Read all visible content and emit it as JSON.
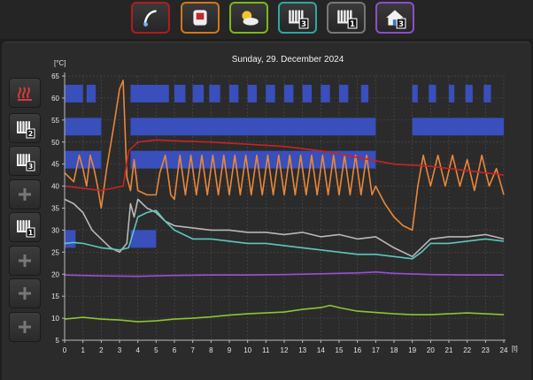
{
  "toolbar": {
    "buttons": [
      {
        "name": "mode-button",
        "icon": "gauge-icon",
        "color": "#b01c1c"
      },
      {
        "name": "boiler-button",
        "icon": "boiler-icon",
        "color": "#d4761a"
      },
      {
        "name": "weather-button",
        "icon": "sun-cloud-icon",
        "color": "#7fb51c"
      },
      {
        "name": "heating-circuit-3-button",
        "icon": "radiator-3-icon",
        "badge": "3",
        "color": "#2fa7a0"
      },
      {
        "name": "heating-circuit-1-button",
        "icon": "radiator-1-icon",
        "badge": "1",
        "color": "#777777"
      },
      {
        "name": "home-3-button",
        "icon": "house-icon",
        "badge": "3",
        "color": "#8a4fc9"
      }
    ]
  },
  "sidebar": {
    "items": [
      {
        "name": "heat-output-button",
        "icon": "heat-waves-icon",
        "badge": ""
      },
      {
        "name": "circuit-2-button",
        "icon": "radiator-icon",
        "badge": "2"
      },
      {
        "name": "circuit-3-button",
        "icon": "radiator-icon",
        "badge": "3"
      },
      {
        "name": "add-button-1",
        "icon": "plus-icon",
        "badge": ""
      },
      {
        "name": "circuit-1-button",
        "icon": "radiator-icon",
        "badge": "1"
      },
      {
        "name": "add-button-2",
        "icon": "plus-icon",
        "badge": ""
      },
      {
        "name": "add-button-3",
        "icon": "plus-icon",
        "badge": ""
      },
      {
        "name": "add-button-4",
        "icon": "plus-icon",
        "badge": ""
      }
    ]
  },
  "chart_data": {
    "type": "line",
    "title": "Sunday, 29. December 2024",
    "ylabel": "[°C]",
    "xlabel": "[t]",
    "ylim": [
      5,
      65
    ],
    "xlim": [
      0,
      24
    ],
    "yticks": [
      5,
      10,
      15,
      20,
      25,
      30,
      35,
      40,
      45,
      50,
      55,
      60,
      65
    ],
    "xticks": [
      0,
      1,
      2,
      3,
      4,
      5,
      6,
      7,
      8,
      9,
      10,
      11,
      12,
      13,
      14,
      15,
      16,
      17,
      18,
      19,
      20,
      21,
      22,
      23,
      24
    ],
    "grid": true,
    "bands": [
      {
        "color": "#3a53c9",
        "y": [
          59,
          63
        ],
        "intervals": [
          [
            0,
            1
          ],
          [
            1.2,
            1.7
          ],
          [
            3.6,
            5.7
          ],
          [
            6,
            6.6
          ],
          [
            7,
            7.6
          ],
          [
            7.9,
            8.5
          ],
          [
            9,
            9.5
          ],
          [
            10,
            10.5
          ],
          [
            11,
            11.5
          ],
          [
            12,
            12.5
          ],
          [
            13,
            13.5
          ],
          [
            14,
            14.5
          ],
          [
            15,
            15.5
          ],
          [
            16.2,
            16.6
          ],
          [
            19,
            19.3
          ],
          [
            19.9,
            20.3
          ],
          [
            21,
            21.3
          ],
          [
            21.9,
            22.3
          ],
          [
            22.9,
            23.3
          ]
        ]
      },
      {
        "color": "#3a53c9",
        "y": [
          51.5,
          55.5
        ],
        "intervals": [
          [
            0,
            2
          ],
          [
            3.6,
            17
          ],
          [
            19,
            24
          ]
        ]
      },
      {
        "color": "#3a53c9",
        "y": [
          44,
          48
        ],
        "intervals": [
          [
            0,
            2
          ],
          [
            3.6,
            17
          ]
        ]
      },
      {
        "color": "#3a53c9",
        "y": [
          26,
          30
        ],
        "intervals": [
          [
            0,
            0.6
          ],
          [
            3.6,
            5
          ]
        ]
      }
    ],
    "series": [
      {
        "color": "#e8873a",
        "points": [
          [
            0,
            43
          ],
          [
            0.5,
            41
          ],
          [
            0.8,
            47
          ],
          [
            1,
            44
          ],
          [
            1.2,
            40
          ],
          [
            1.4,
            47
          ],
          [
            1.6,
            44
          ],
          [
            1.8,
            40
          ],
          [
            2,
            35
          ],
          [
            2.3,
            44
          ],
          [
            2.7,
            54
          ],
          [
            3,
            62
          ],
          [
            3.2,
            64
          ],
          [
            3.4,
            42
          ],
          [
            3.6,
            39
          ],
          [
            3.8,
            46
          ],
          [
            4,
            39
          ],
          [
            4.5,
            38
          ],
          [
            5,
            38
          ],
          [
            5.2,
            43
          ],
          [
            5.5,
            47
          ],
          [
            5.8,
            38
          ],
          [
            6,
            37
          ],
          [
            6.3,
            47
          ],
          [
            6.6,
            38
          ],
          [
            6.9,
            47
          ],
          [
            7.2,
            38
          ],
          [
            7.5,
            47
          ],
          [
            7.8,
            38
          ],
          [
            8.1,
            47
          ],
          [
            8.4,
            38
          ],
          [
            8.7,
            47
          ],
          [
            9,
            38
          ],
          [
            9.3,
            47
          ],
          [
            9.6,
            38
          ],
          [
            9.9,
            47
          ],
          [
            10.2,
            38
          ],
          [
            10.5,
            47
          ],
          [
            10.8,
            38
          ],
          [
            11.1,
            47
          ],
          [
            11.4,
            38
          ],
          [
            11.7,
            47
          ],
          [
            12,
            38
          ],
          [
            12.3,
            47
          ],
          [
            12.6,
            38
          ],
          [
            12.9,
            47
          ],
          [
            13.2,
            38
          ],
          [
            13.5,
            47
          ],
          [
            13.8,
            38
          ],
          [
            14.1,
            47
          ],
          [
            14.4,
            38
          ],
          [
            14.7,
            47
          ],
          [
            15,
            38
          ],
          [
            15.3,
            47
          ],
          [
            15.6,
            38
          ],
          [
            15.9,
            47
          ],
          [
            16.2,
            38
          ],
          [
            16.5,
            47
          ],
          [
            16.8,
            38
          ],
          [
            17,
            40
          ],
          [
            17.5,
            36
          ],
          [
            18,
            33
          ],
          [
            18.5,
            31
          ],
          [
            19,
            30
          ],
          [
            19.3,
            40
          ],
          [
            19.6,
            47
          ],
          [
            20,
            40
          ],
          [
            20.4,
            47
          ],
          [
            20.8,
            40
          ],
          [
            21.2,
            47
          ],
          [
            21.6,
            40
          ],
          [
            22,
            46
          ],
          [
            22.4,
            39
          ],
          [
            22.8,
            47
          ],
          [
            23.2,
            40
          ],
          [
            23.6,
            44
          ],
          [
            24,
            38
          ]
        ]
      },
      {
        "color": "#c62424",
        "points": [
          [
            0,
            40
          ],
          [
            1,
            39.5
          ],
          [
            2,
            39
          ],
          [
            3.2,
            40
          ],
          [
            3.5,
            48
          ],
          [
            4,
            50
          ],
          [
            5,
            50.5
          ],
          [
            6,
            50.3
          ],
          [
            8,
            50
          ],
          [
            10,
            49.5
          ],
          [
            12,
            49
          ],
          [
            14,
            48
          ],
          [
            16,
            46.5
          ],
          [
            18,
            45
          ],
          [
            20,
            44.5
          ],
          [
            22,
            43.5
          ],
          [
            24,
            42.5
          ]
        ]
      },
      {
        "color": "#b8b8b8",
        "points": [
          [
            0,
            37
          ],
          [
            0.5,
            36
          ],
          [
            1,
            34
          ],
          [
            1.5,
            30
          ],
          [
            2,
            28
          ],
          [
            2.5,
            26
          ],
          [
            3,
            25
          ],
          [
            3.4,
            27
          ],
          [
            3.6,
            36
          ],
          [
            3.8,
            33
          ],
          [
            4,
            37
          ],
          [
            4.5,
            35
          ],
          [
            5,
            34
          ],
          [
            5.5,
            32
          ],
          [
            6,
            31
          ],
          [
            7,
            30.5
          ],
          [
            8,
            30
          ],
          [
            9,
            30
          ],
          [
            10,
            29.5
          ],
          [
            11,
            29.5
          ],
          [
            12,
            29
          ],
          [
            13,
            29.5
          ],
          [
            14,
            28.5
          ],
          [
            15,
            29
          ],
          [
            16,
            28
          ],
          [
            17,
            28.5
          ],
          [
            18,
            26
          ],
          [
            19,
            24
          ],
          [
            19.5,
            26
          ],
          [
            20,
            28
          ],
          [
            21,
            28.5
          ],
          [
            22,
            28.5
          ],
          [
            23,
            29
          ],
          [
            24,
            28
          ]
        ]
      },
      {
        "color": "#5cc7be",
        "points": [
          [
            0,
            27
          ],
          [
            0.5,
            27.2
          ],
          [
            1,
            27
          ],
          [
            1.5,
            26.5
          ],
          [
            2,
            26
          ],
          [
            3,
            25.5
          ],
          [
            3.5,
            26
          ],
          [
            4,
            33
          ],
          [
            4.5,
            34
          ],
          [
            5,
            34.5
          ],
          [
            5.5,
            32
          ],
          [
            6,
            30
          ],
          [
            7,
            28
          ],
          [
            8,
            28
          ],
          [
            9,
            27.5
          ],
          [
            10,
            27
          ],
          [
            11,
            27
          ],
          [
            12,
            26.5
          ],
          [
            13,
            26
          ],
          [
            14,
            25.5
          ],
          [
            15,
            25
          ],
          [
            16,
            24.5
          ],
          [
            17,
            24.5
          ],
          [
            18,
            24
          ],
          [
            19,
            23.5
          ],
          [
            19.5,
            25
          ],
          [
            20,
            27
          ],
          [
            21,
            27
          ],
          [
            22,
            27.5
          ],
          [
            23,
            28
          ],
          [
            24,
            27.5
          ]
        ]
      },
      {
        "color": "#9a4fd6",
        "points": [
          [
            0,
            19.8
          ],
          [
            2,
            19.6
          ],
          [
            4,
            19.5
          ],
          [
            6,
            19.7
          ],
          [
            8,
            19.8
          ],
          [
            10,
            19.8
          ],
          [
            12,
            19.9
          ],
          [
            14,
            20.1
          ],
          [
            16,
            20.3
          ],
          [
            17,
            20.5
          ],
          [
            18,
            20.2
          ],
          [
            20,
            19.9
          ],
          [
            22,
            19.8
          ],
          [
            24,
            19.8
          ]
        ]
      },
      {
        "color": "#8dc433",
        "points": [
          [
            0,
            9.8
          ],
          [
            1,
            10.2
          ],
          [
            2,
            9.8
          ],
          [
            3,
            9.6
          ],
          [
            4,
            9.2
          ],
          [
            5,
            9.4
          ],
          [
            6,
            9.8
          ],
          [
            7,
            10
          ],
          [
            8,
            10.3
          ],
          [
            9,
            10.7
          ],
          [
            10,
            11
          ],
          [
            11,
            11.2
          ],
          [
            12,
            11.4
          ],
          [
            13,
            12
          ],
          [
            14,
            12.4
          ],
          [
            14.5,
            12.9
          ],
          [
            15,
            12.4
          ],
          [
            16,
            11.6
          ],
          [
            17,
            11.3
          ],
          [
            18,
            11
          ],
          [
            19,
            10.8
          ],
          [
            20,
            10.8
          ],
          [
            21,
            11
          ],
          [
            22,
            11.2
          ],
          [
            23,
            11
          ],
          [
            24,
            10.8
          ]
        ]
      }
    ]
  }
}
